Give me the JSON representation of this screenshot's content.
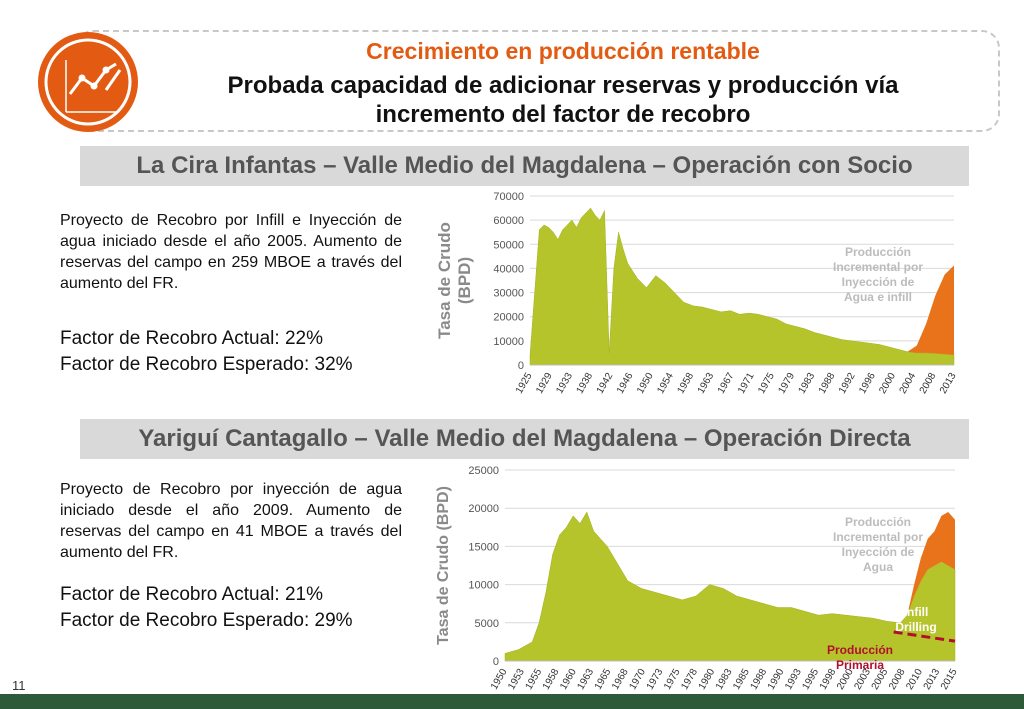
{
  "header": {
    "title": "Crecimiento en producción rentable",
    "subtitle_line1": "Probada capacidad de adicionar reservas y producción vía",
    "subtitle_line2": "incremento del factor de recobro"
  },
  "section1": {
    "banner": "La Cira Infantas – Valle Medio del Magdalena – Operación con Socio",
    "description": "Proyecto de Recobro por Infill e Inyección de agua iniciado desde el año 2005. Aumento de reservas del campo en 259 MBOE a través del aumento del FR.",
    "factor_actual": "Factor de Recobro Actual: 22%",
    "factor_esperado": "Factor de Recobro Esperado: 32%"
  },
  "section2": {
    "banner": "Yariguí Cantagallo – Valle Medio del Magdalena – Operación Directa",
    "description": "Proyecto de Recobro por inyección de agua iniciado desde el año 2009. Aumento de reservas del campo en 41 MBOE a través del aumento del FR.",
    "factor_actual": "Factor de Recobro Actual: 21%",
    "factor_esperado": "Factor de Recobro Esperado: 29%"
  },
  "slide_number": "11",
  "colors": {
    "accent": "#e35b12",
    "base_area": "#b5c42a",
    "incremental_area": "#e8731a",
    "primary_line": "#b0102e",
    "footer": "#2f5a3a"
  },
  "chart_data": [
    {
      "type": "area",
      "ylabel_line1": "Tasa de Crudo",
      "ylabel_line2": "(BPD)",
      "ylim": [
        0,
        70000
      ],
      "yticks": [
        0,
        10000,
        20000,
        30000,
        40000,
        50000,
        60000,
        70000
      ],
      "xlim": [
        1925,
        2016
      ],
      "xticks": [
        "1925",
        "1929",
        "1933",
        "1938",
        "1942",
        "1946",
        "1950",
        "1954",
        "1958",
        "1963",
        "1967",
        "1971",
        "1975",
        "1979",
        "1983",
        "1988",
        "1992",
        "1996",
        "2000",
        "2004",
        "2008",
        "2013"
      ],
      "grid": true,
      "series": [
        {
          "name": "",
          "x": [
            1925,
            1926,
            1927,
            1928,
            1929,
            1930,
            1931,
            1932,
            1933,
            1934,
            1935,
            1936,
            1937,
            1938,
            1939,
            1940,
            1941,
            1942,
            1943,
            1944,
            1945,
            1946,
            1948,
            1950,
            1952,
            1954,
            1956,
            1958,
            1960,
            1962,
            1964,
            1966,
            1968,
            1970,
            1972,
            1974,
            1976,
            1978,
            1980,
            1982,
            1984,
            1986,
            1988,
            1990,
            1992,
            1994,
            1996,
            1998,
            2000,
            2002,
            2004,
            2006,
            2008,
            2010,
            2012,
            2014,
            2016
          ],
          "values": [
            4000,
            30000,
            56000,
            58000,
            57000,
            55000,
            52000,
            56000,
            58000,
            60000,
            57000,
            61000,
            63000,
            65000,
            62000,
            60000,
            64000,
            5000,
            40000,
            55000,
            48000,
            42000,
            36000,
            32000,
            37000,
            34000,
            30000,
            26000,
            24500,
            24000,
            23000,
            22000,
            22500,
            21000,
            21500,
            21000,
            20000,
            19000,
            17000,
            16000,
            15000,
            13500,
            12500,
            11500,
            10500,
            10000,
            9500,
            9000,
            8500,
            7500,
            6500,
            5500,
            5000,
            5000,
            4800,
            4500,
            4200
          ]
        },
        {
          "name": "Producción Incremental por Inyección de Agua e infill",
          "x": [
            2006,
            2008,
            2010,
            2012,
            2014,
            2016
          ],
          "values": [
            0,
            3000,
            12000,
            24000,
            33000,
            37000
          ]
        }
      ],
      "annotations": [
        "Producción Incremental por Inyección de Agua e infill"
      ]
    },
    {
      "type": "area",
      "ylabel": "Tasa de Crudo (BPD)",
      "ylim": [
        0,
        25000
      ],
      "yticks": [
        0,
        5000,
        10000,
        15000,
        20000,
        25000
      ],
      "xlim": [
        1950,
        2016
      ],
      "xticks": [
        "1950",
        "1953",
        "1955",
        "1958",
        "1960",
        "1963",
        "1965",
        "1968",
        "1970",
        "1973",
        "1975",
        "1978",
        "1980",
        "1983",
        "1985",
        "1988",
        "1990",
        "1993",
        "1995",
        "1998",
        "2000",
        "2003",
        "2005",
        "2008",
        "2010",
        "2013",
        "2015"
      ],
      "grid": true,
      "series": [
        {
          "name": "",
          "x": [
            1950,
            1952,
            1954,
            1955,
            1956,
            1957,
            1958,
            1959,
            1960,
            1961,
            1962,
            1963,
            1964,
            1965,
            1966,
            1968,
            1970,
            1972,
            1974,
            1976,
            1978,
            1980,
            1982,
            1984,
            1986,
            1988,
            1990,
            1992,
            1994,
            1996,
            1998,
            2000,
            2002,
            2004,
            2006,
            2008,
            2009,
            2010,
            2011,
            2012,
            2013,
            2014,
            2015,
            2016
          ],
          "values": [
            1000,
            1500,
            2500,
            5000,
            9000,
            14000,
            16500,
            17500,
            19000,
            18000,
            19500,
            17000,
            16000,
            15000,
            13500,
            10500,
            9500,
            9000,
            8500,
            8000,
            8500,
            10000,
            9500,
            8500,
            8000,
            7500,
            7000,
            7000,
            6500,
            6000,
            6200,
            6000,
            5800,
            5600,
            5200,
            5000,
            6000,
            8500,
            10500,
            12000,
            12500,
            13000,
            12500,
            12000
          ]
        },
        {
          "name": "Producción Incremental por Inyección de Agua",
          "x": [
            2009,
            2010,
            2011,
            2012,
            2013,
            2014,
            2015,
            2016
          ],
          "values": [
            0,
            1500,
            3000,
            4000,
            4500,
            6000,
            7000,
            6500
          ]
        }
      ],
      "primary_line": {
        "name": "Producción Primaria",
        "x": [
          2007,
          2010,
          2013,
          2016
        ],
        "values": [
          3800,
          3400,
          3000,
          2600
        ]
      },
      "annotations": [
        "Producción Incremental por Inyección de Agua",
        "Infill Drilling",
        "Producción Primaria"
      ]
    }
  ]
}
